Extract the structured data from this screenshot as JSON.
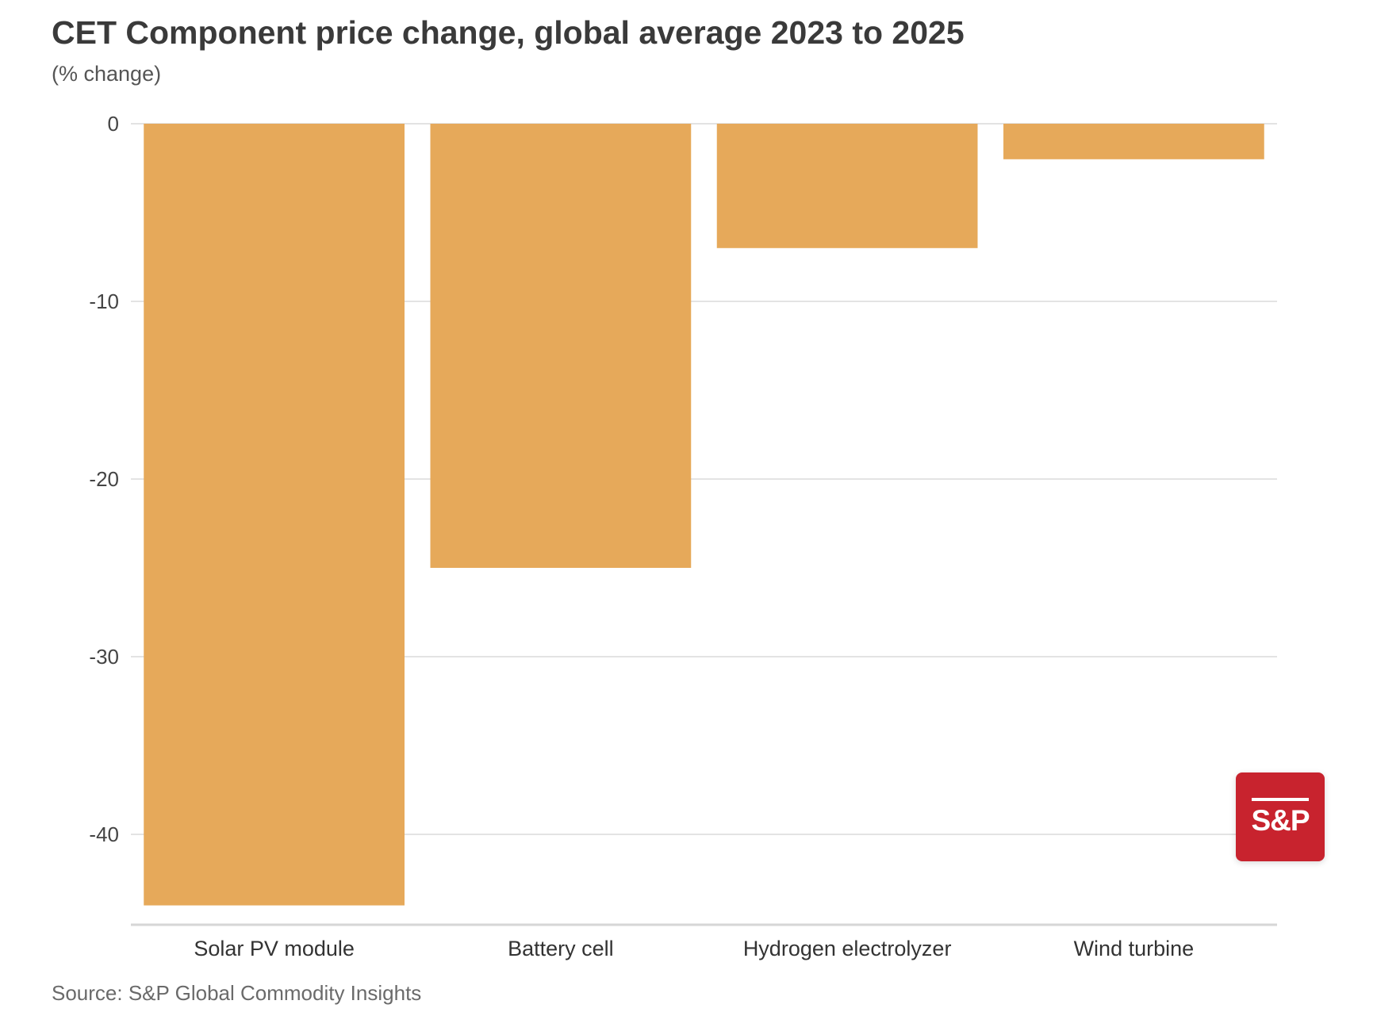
{
  "chart_data": {
    "type": "bar",
    "title": "CET Component price change, global average 2023 to 2025",
    "subtitle": "(% change)",
    "categories": [
      "Solar PV module",
      "Battery cell",
      "Hydrogen electrolyzer",
      "Wind turbine"
    ],
    "values": [
      -44,
      -25,
      -7,
      -2
    ],
    "ylim": [
      -45,
      0
    ],
    "yticks": [
      0,
      -10,
      -20,
      -30,
      -40
    ],
    "ytick_labels": [
      "0",
      "-10",
      "-20",
      "-30",
      "-40"
    ],
    "xlabel": "",
    "ylabel": "",
    "grid": true,
    "bar_color": "#e6a95a",
    "grid_color": "#e3e3e3",
    "source": "Source: S&P Global Commodity Insights"
  },
  "logo": {
    "text": "S&P",
    "color": "#c8232e"
  }
}
